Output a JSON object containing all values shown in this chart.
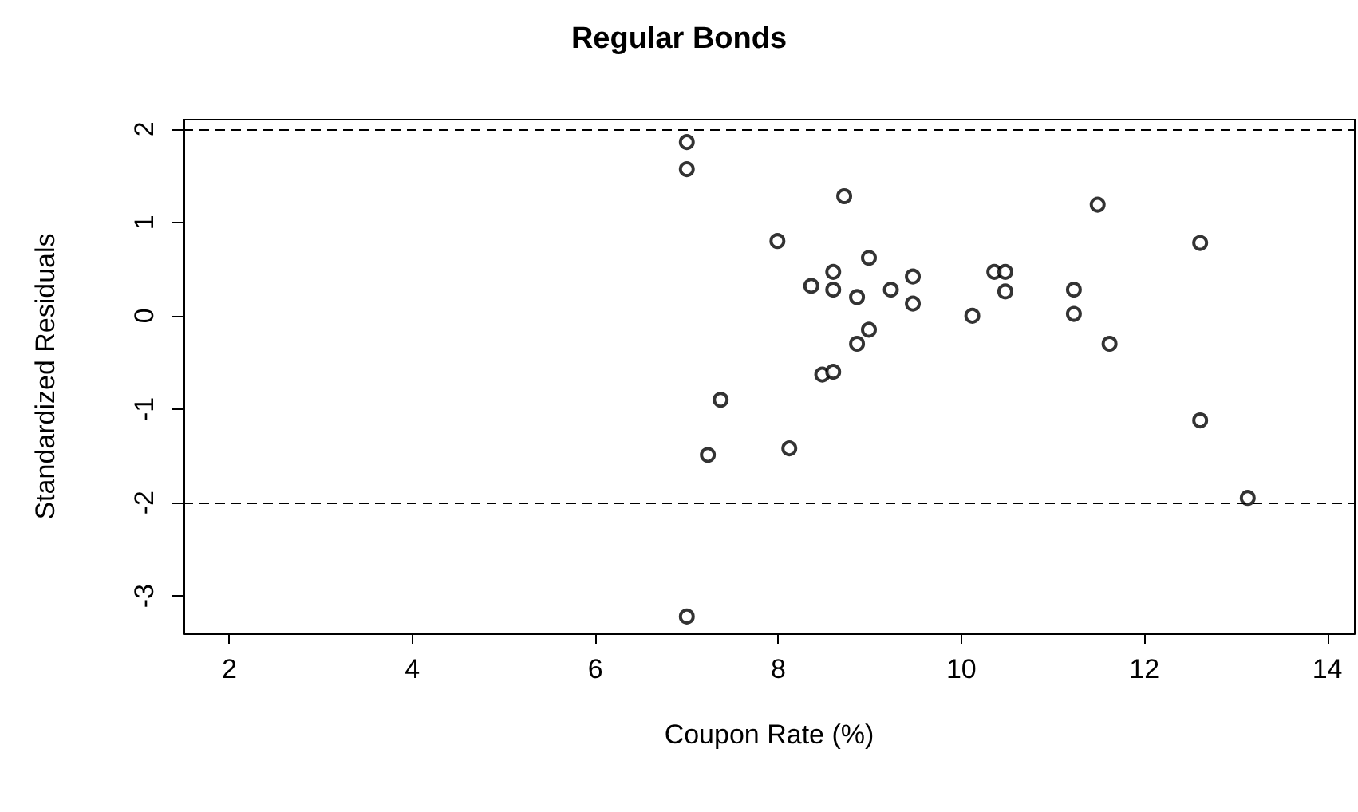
{
  "chart_data": {
    "type": "scatter",
    "title": "Regular Bonds",
    "xlabel": "Coupon Rate (%)",
    "ylabel": "Standardized Residuals",
    "x": [
      7.0,
      7.0,
      7.0,
      7.23,
      7.37,
      7.99,
      8.12,
      8.36,
      8.48,
      8.6,
      8.6,
      8.6,
      8.72,
      8.86,
      8.86,
      8.99,
      8.99,
      9.23,
      9.47,
      9.47,
      10.12,
      10.36,
      10.48,
      10.48,
      11.23,
      11.23,
      11.49,
      11.62,
      12.61,
      12.61,
      13.13
    ],
    "values": [
      1.86,
      1.57,
      -3.22,
      -1.49,
      -0.9,
      0.8,
      -1.42,
      0.32,
      -0.63,
      -0.6,
      0.47,
      0.28,
      1.28,
      0.2,
      -0.3,
      0.62,
      -0.15,
      0.28,
      0.42,
      0.13,
      0.0,
      0.47,
      0.47,
      0.26,
      0.28,
      0.02,
      1.19,
      -0.3,
      0.78,
      -1.12,
      -1.95
    ],
    "color": "#000000",
    "marker": "circle",
    "xlim": [
      1.5,
      14.3
    ],
    "xticks": [
      2,
      4,
      6,
      8,
      10,
      12,
      14
    ],
    "ylim": [
      -3.4,
      2.1
    ],
    "yticks": [
      -3,
      -2,
      -1,
      0,
      1,
      2
    ],
    "ref_lines": [
      {
        "axis": "y",
        "value": 2,
        "label": null,
        "line_style": "dashed",
        "color": "#000000"
      },
      {
        "axis": "y",
        "value": -2,
        "label": null,
        "line_style": "dashed",
        "color": "#000000"
      }
    ],
    "grid": false
  }
}
